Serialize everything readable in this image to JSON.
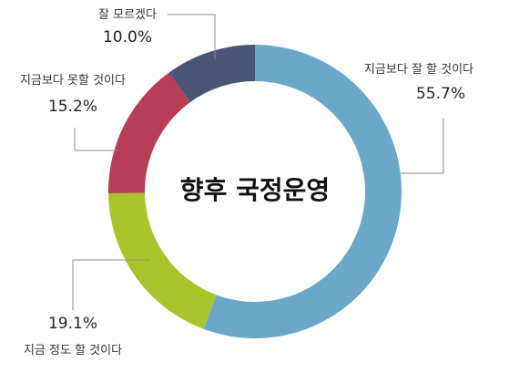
{
  "chart_data": {
    "type": "pie",
    "title": "향후 국정운영",
    "series": [
      {
        "values": [
          {
            "label": "지금보다 잘 할 것이다",
            "value": 55.7,
            "value_label": "55.7%",
            "color": "#6aa7c9"
          },
          {
            "label": "지금 정도 할 것이다",
            "value": 19.1,
            "value_label": "19.1%",
            "color": "#a8c42a"
          },
          {
            "label": "지금보다 못할 것이다",
            "value": 15.2,
            "value_label": "15.2%",
            "color": "#b83d57"
          },
          {
            "label": "잘 모르겠다",
            "value": 10.0,
            "value_label": "10.0%",
            "color": "#4a5676"
          }
        ]
      }
    ]
  }
}
